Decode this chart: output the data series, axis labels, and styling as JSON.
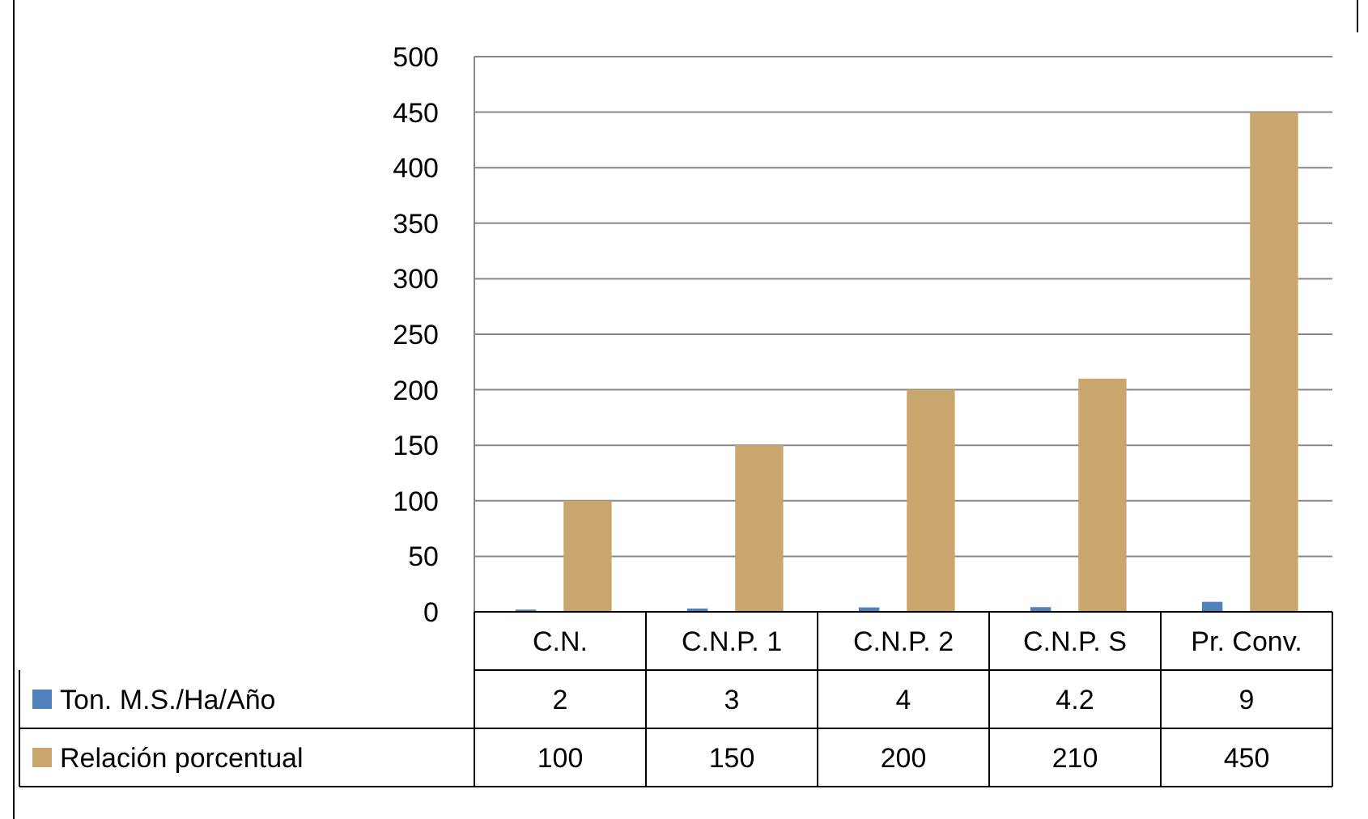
{
  "chart_data": {
    "type": "bar",
    "categories": [
      "C.N.",
      "C.N.P. 1",
      "C.N.P. 2",
      "C.N.P. S",
      "Pr. Conv."
    ],
    "series": [
      {
        "name": "Ton. M.S./Ha/Año",
        "color": "#4f81bd",
        "values": [
          2,
          3,
          4,
          4.2,
          9
        ]
      },
      {
        "name": "Relación porcentual",
        "color": "#c9a66b",
        "values": [
          100,
          150,
          200,
          210,
          450
        ]
      }
    ],
    "ylim": [
      0,
      500
    ],
    "yticks": [
      0,
      50,
      100,
      150,
      200,
      250,
      300,
      350,
      400,
      450,
      500
    ],
    "grid": "y",
    "legend": "bottom",
    "data_labels": true
  }
}
